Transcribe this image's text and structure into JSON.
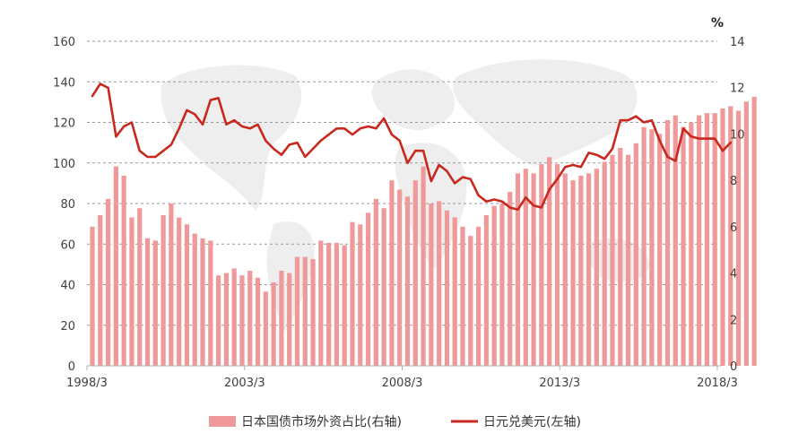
{
  "chart_data": {
    "type": "bar+line",
    "title": "",
    "x_tick_labels": [
      "1998/3",
      "2003/3",
      "2008/3",
      "2013/3",
      "2018/3"
    ],
    "left_axis": {
      "ylim": [
        0,
        160
      ],
      "ticks": [
        0,
        20,
        40,
        60,
        80,
        100,
        120,
        140,
        160
      ]
    },
    "right_axis": {
      "unit": "%",
      "ylim": [
        0,
        14
      ],
      "ticks": [
        0,
        2,
        4,
        6,
        8,
        10,
        12,
        14
      ]
    },
    "grid": "horizontal dashed",
    "legend_position": "bottom",
    "colors": {
      "bar": "#f0999a",
      "line": "#c8281e"
    },
    "series": [
      {
        "name": "日本国债市场外资占比(右轴)",
        "type": "bar",
        "axis": "right",
        "x_start": "1998/3",
        "x_step_months": 3,
        "values": [
          6.0,
          6.5,
          7.2,
          8.6,
          8.2,
          6.4,
          6.8,
          5.5,
          5.4,
          6.5,
          7.0,
          6.4,
          6.1,
          5.7,
          5.5,
          5.4,
          3.9,
          4.0,
          4.2,
          3.9,
          4.1,
          3.8,
          3.2,
          3.6,
          4.1,
          4.0,
          4.7,
          4.7,
          4.6,
          5.4,
          5.3,
          5.3,
          5.2,
          6.2,
          6.1,
          6.6,
          7.2,
          6.8,
          8.0,
          7.6,
          7.3,
          8.0,
          8.6,
          7.0,
          7.1,
          6.7,
          6.4,
          6.0,
          5.6,
          6.0,
          6.5,
          6.9,
          7.0,
          7.5,
          8.3,
          8.5,
          8.3,
          8.7,
          9.0,
          8.7,
          8.3,
          8.0,
          8.2,
          8.3,
          8.5,
          8.8,
          9.1,
          9.4,
          9.1,
          9.6,
          10.3,
          10.2,
          10.0,
          10.6,
          10.8,
          10.3,
          10.5,
          10.8,
          10.9,
          10.9,
          11.1,
          11.2,
          11.0,
          11.4,
          11.6
        ]
      },
      {
        "name": "日元兑美元(左轴)",
        "type": "line",
        "axis": "left",
        "x_start": "1998/3",
        "x_step_months": 3,
        "values": [
          133,
          139,
          137,
          113,
          118,
          120,
          106,
          103,
          103,
          106,
          109,
          117,
          126,
          124,
          119,
          131,
          132,
          119,
          121,
          118,
          117,
          119,
          111,
          107,
          104,
          109,
          110,
          103,
          107,
          111,
          114,
          117,
          117,
          114,
          117,
          118,
          117,
          122,
          114,
          111,
          100,
          106,
          106,
          91,
          99,
          96,
          90,
          93,
          92,
          84,
          81,
          82,
          81,
          78,
          77,
          83,
          79,
          78,
          87,
          92,
          98,
          99,
          98,
          105,
          104,
          102,
          107,
          121,
          121,
          123,
          120,
          121,
          111,
          103,
          101,
          117,
          113,
          112,
          112,
          112,
          106,
          110
        ]
      }
    ]
  }
}
